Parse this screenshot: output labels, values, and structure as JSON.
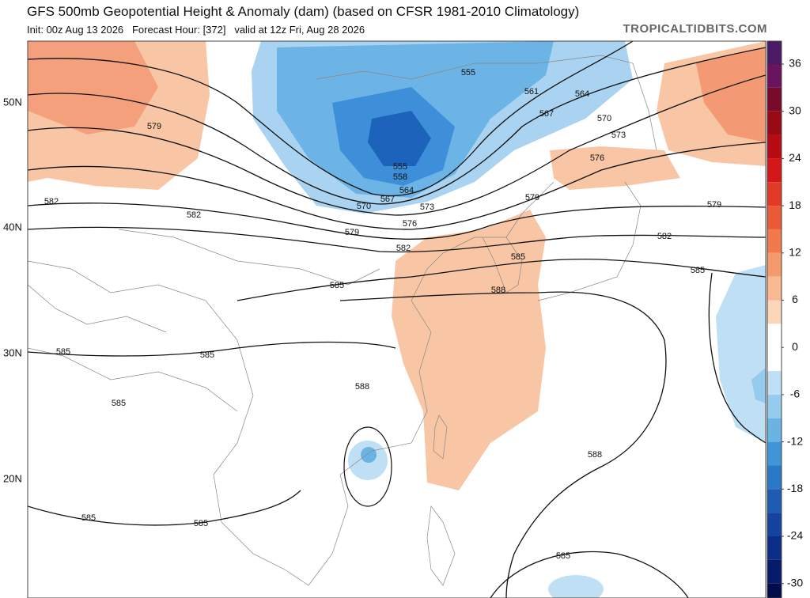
{
  "header": {
    "title": "GFS 500mb Geopotential Height & Anomaly (dam) (based on CFSR 1981-2010 Climatology)",
    "subtitle": "Init: 00z Aug 13 2026   Forecast Hour: [372]   valid at 12z Fri, Aug 28 2026",
    "watermark": "TROPICALTIDBITS.COM"
  },
  "map": {
    "latitude_labels": [
      "50N",
      "40N",
      "30N",
      "20N"
    ],
    "contour_labels": [
      "579",
      "582",
      "582",
      "579",
      "570",
      "567",
      "564",
      "558",
      "555",
      "573",
      "576",
      "582",
      "555",
      "561",
      "564",
      "567",
      "570",
      "573",
      "576",
      "579",
      "579",
      "582",
      "585",
      "585",
      "585",
      "588",
      "585",
      "585",
      "588",
      "585",
      "588",
      "585",
      "585",
      "585"
    ]
  },
  "colorbar": {
    "ylim": [
      -33,
      39
    ],
    "yticks": [
      36,
      30,
      24,
      18,
      12,
      6,
      0,
      -6,
      -12,
      -18,
      -24,
      -30
    ],
    "colors": [
      "#4b1a66",
      "#6a1460",
      "#7a0a2a",
      "#9a0a14",
      "#b80c14",
      "#d41818",
      "#e23a26",
      "#ea5a36",
      "#f07a4c",
      "#f59a6c",
      "#f8b890",
      "#fbd6b8",
      "#ffffff",
      "#ffffff",
      "#bfe0f4",
      "#95ccee",
      "#6ab4e4",
      "#3e96d8",
      "#2a78c8",
      "#1e5cb4",
      "#1444a0",
      "#0c2e88",
      "#061c6a",
      "#020c48"
    ]
  }
}
